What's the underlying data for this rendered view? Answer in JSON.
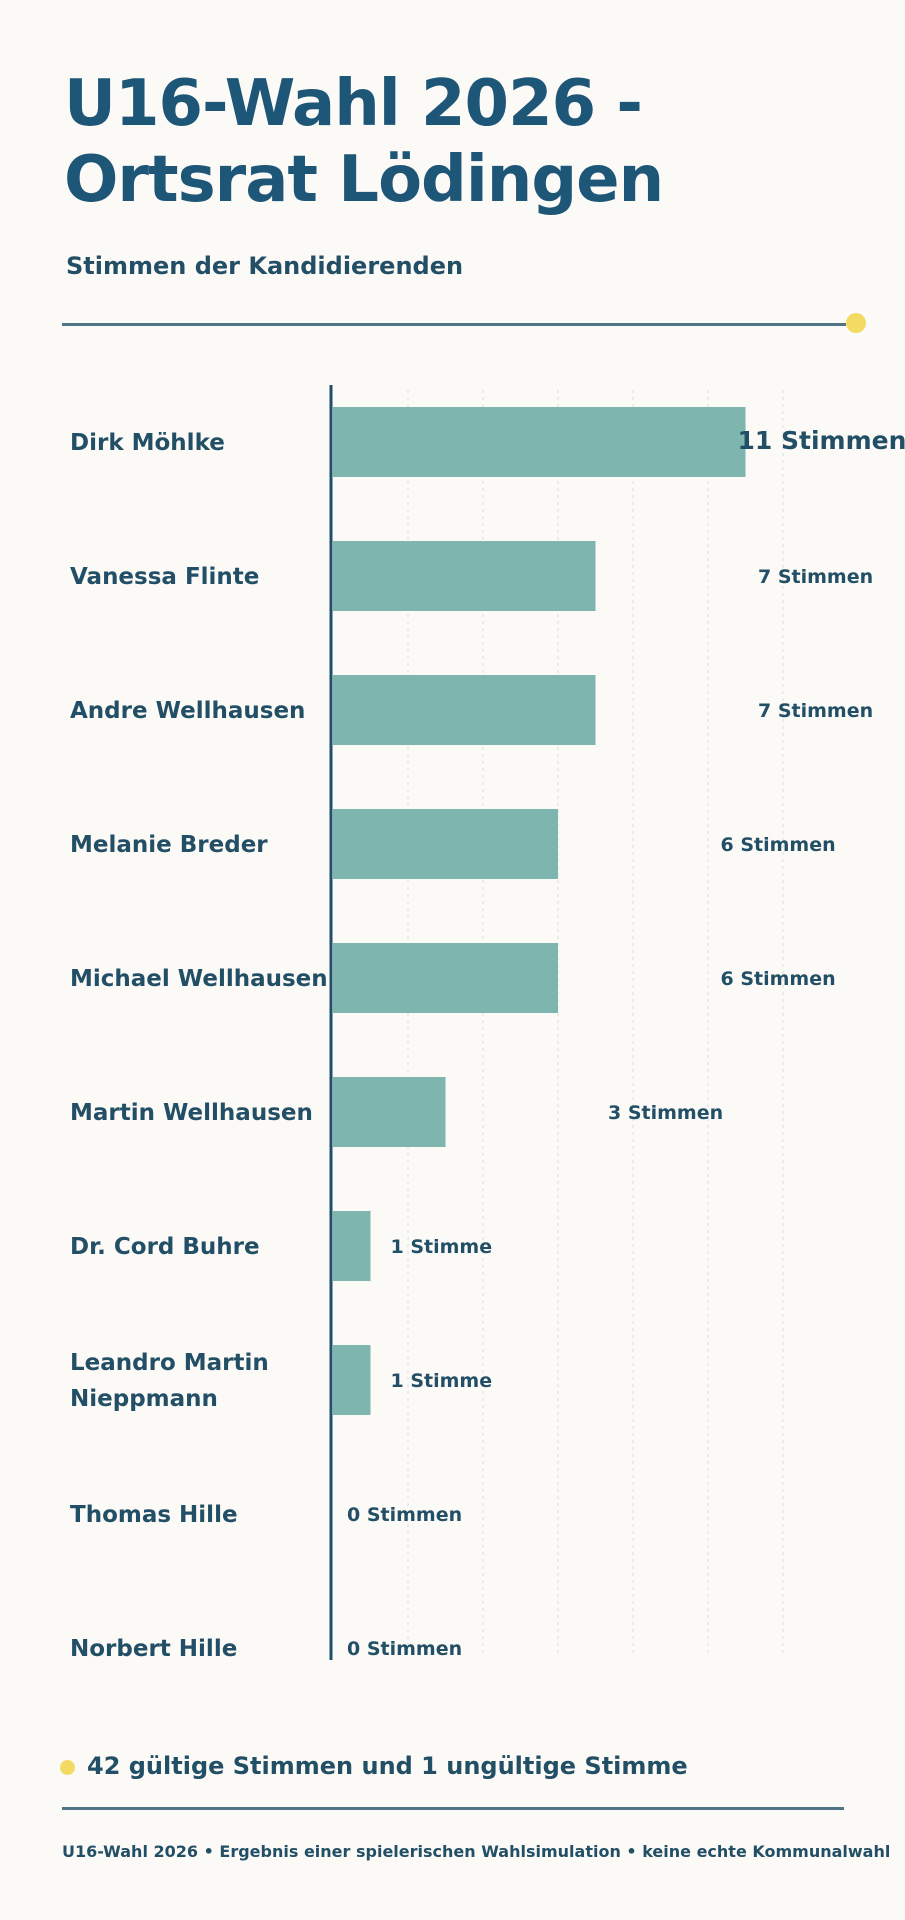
{
  "header": {
    "title_line1": "U16-Wahl 2026 -",
    "title_line2": "Ortsrat Lödingen",
    "subtitle": "Stimmen der Kandidierenden"
  },
  "colors": {
    "bar": "#7eb5ae",
    "text": "#234f66",
    "accent_dot": "#f3da63",
    "rule": "#4f7486"
  },
  "chart_data": {
    "type": "bar",
    "orientation": "horizontal",
    "categories": [
      "Dirk Möhlke",
      "Vanessa Flinte",
      "Andre Wellhausen",
      "Melanie Breder",
      "Michael Wellhausen",
      "Martin Wellhausen",
      "Dr. Cord Buhre",
      "Leandro Martin Nieppmann",
      "Thomas Hille",
      "Norbert Hille"
    ],
    "values": [
      11,
      7,
      7,
      6,
      6,
      3,
      1,
      1,
      0,
      0
    ],
    "data_labels": [
      "11 Stimmen",
      "7 Stimmen",
      "7 Stimmen",
      "6 Stimmen",
      "6 Stimmen",
      "3 Stimmen",
      "1 Stimme",
      "1 Stimme",
      "0 Stimmen",
      "0 Stimmen"
    ],
    "xlim": [
      0,
      14
    ],
    "grid": true
  },
  "footer": {
    "summary": "42 gültige Stimmen und 1 ungültige Stimme",
    "note": "U16-Wahl 2026 • Ergebnis einer spielerischen Wahlsimulation • keine echte Kommunalwahl"
  }
}
